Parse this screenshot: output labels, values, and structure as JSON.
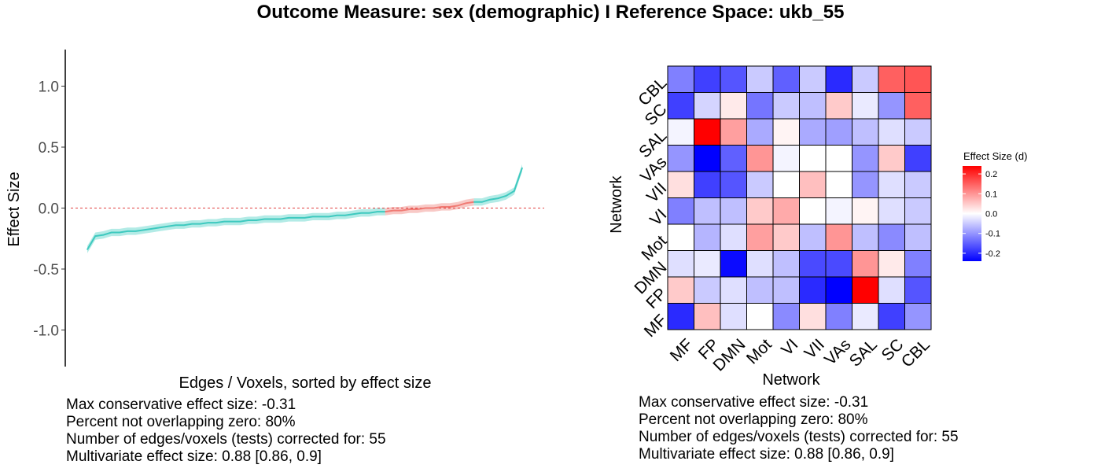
{
  "title": "Outcome Measure: sex (demographic)   I  Reference Space: ukb_55",
  "colors": {
    "teal": "#3ec9bf",
    "teal_band": "#b3ebe6",
    "red": "#f07b74",
    "red_band": "#f8c9c6",
    "zero_line": "#e04040",
    "heat_low": "#0000ff",
    "heat_mid": "#ffffff",
    "heat_high": "#ff0000"
  },
  "chart_data": [
    {
      "type": "line",
      "xlabel": "Edges / Voxels, sorted by effect size",
      "ylabel": "Effect Size",
      "ylim": [
        -1.3,
        1.3
      ],
      "yticks": [
        1.0,
        0.5,
        0.0,
        -0.5,
        -1.0
      ],
      "ytick_labels": [
        "1.0",
        "0.5",
        "0.0",
        "-0.5",
        "-1.0"
      ],
      "grid": false,
      "reference_line": 0,
      "band_halfwidth": 0.03,
      "x": [
        1,
        2,
        3,
        4,
        5,
        6,
        7,
        8,
        9,
        10,
        11,
        12,
        13,
        14,
        15,
        16,
        17,
        18,
        19,
        20,
        21,
        22,
        23,
        24,
        25,
        26,
        27,
        28,
        29,
        30,
        31,
        32,
        33,
        34,
        35,
        36,
        37,
        38,
        39,
        40,
        41,
        42,
        43,
        44,
        45,
        46,
        47,
        48,
        49,
        50,
        51,
        52,
        53,
        54,
        55
      ],
      "y": [
        -0.34,
        -0.23,
        -0.22,
        -0.2,
        -0.2,
        -0.19,
        -0.19,
        -0.18,
        -0.17,
        -0.16,
        -0.15,
        -0.14,
        -0.14,
        -0.13,
        -0.13,
        -0.12,
        -0.12,
        -0.11,
        -0.11,
        -0.11,
        -0.1,
        -0.1,
        -0.09,
        -0.09,
        -0.09,
        -0.08,
        -0.08,
        -0.08,
        -0.07,
        -0.07,
        -0.07,
        -0.06,
        -0.06,
        -0.05,
        -0.04,
        -0.04,
        -0.03,
        -0.03,
        -0.02,
        -0.02,
        -0.01,
        -0.01,
        0.0,
        0.0,
        0.01,
        0.01,
        0.02,
        0.04,
        0.05,
        0.05,
        0.07,
        0.08,
        0.1,
        0.14,
        0.33
      ],
      "overlap_zero": [
        false,
        false,
        false,
        false,
        false,
        false,
        false,
        false,
        false,
        false,
        false,
        false,
        false,
        false,
        false,
        false,
        false,
        false,
        false,
        false,
        false,
        false,
        false,
        false,
        false,
        false,
        false,
        false,
        false,
        false,
        false,
        false,
        false,
        false,
        false,
        false,
        false,
        true,
        true,
        true,
        true,
        true,
        true,
        true,
        true,
        true,
        true,
        true,
        false,
        false,
        false,
        false,
        false,
        false,
        false
      ]
    },
    {
      "type": "heatmap",
      "xlabel": "Network",
      "ylabel": "Network",
      "x_labels": [
        "MF",
        "FP",
        "DMN",
        "Mot",
        "VI",
        "VII",
        "VAs",
        "SAL",
        "SC",
        "CBL"
      ],
      "y_labels": [
        "MF",
        "FP",
        "DMN",
        "Mot",
        "VI",
        "VII",
        "VAs",
        "SAL",
        "SC",
        "CBL"
      ],
      "rows_top_to_bottom": [
        "CBL",
        "SC",
        "SAL",
        "VAs",
        "VII",
        "VI",
        "Mot",
        "DMN",
        "FP",
        "MF"
      ],
      "values": [
        [
          -0.12,
          -0.18,
          -0.16,
          -0.05,
          -0.15,
          -0.05,
          -0.2,
          -0.05,
          0.15,
          0.16
        ],
        [
          -0.18,
          -0.04,
          0.02,
          -0.13,
          -0.05,
          -0.06,
          0.05,
          -0.02,
          -0.1,
          0.15
        ],
        [
          -0.01,
          0.24,
          0.09,
          -0.08,
          0.01,
          -0.08,
          -0.09,
          -0.06,
          -0.03,
          -0.05
        ],
        [
          -0.1,
          -0.26,
          -0.15,
          0.1,
          -0.01,
          0.0,
          0.0,
          -0.1,
          0.05,
          -0.18
        ],
        [
          0.03,
          -0.18,
          -0.16,
          -0.05,
          0.0,
          0.06,
          0.0,
          -0.1,
          -0.03,
          -0.05
        ],
        [
          -0.12,
          -0.06,
          -0.06,
          0.05,
          0.08,
          0.0,
          -0.01,
          0.01,
          -0.03,
          -0.05
        ],
        [
          0.0,
          -0.07,
          -0.03,
          0.09,
          0.05,
          -0.06,
          0.1,
          -0.06,
          -0.11,
          -0.06
        ],
        [
          -0.03,
          -0.02,
          -0.23,
          -0.03,
          -0.06,
          -0.17,
          -0.17,
          0.1,
          0.02,
          -0.12
        ],
        [
          0.05,
          -0.05,
          -0.03,
          -0.06,
          -0.06,
          -0.2,
          -0.26,
          0.24,
          -0.03,
          -0.16
        ],
        [
          -0.2,
          0.06,
          -0.03,
          0.0,
          -0.11,
          0.03,
          -0.12,
          -0.02,
          -0.18,
          -0.1
        ]
      ],
      "legend": {
        "title": "Effect Size (d)",
        "ticks": [
          0.2,
          0.1,
          0.0,
          -0.1,
          -0.2
        ],
        "tick_labels": [
          "0.2",
          "0.1",
          "0.0",
          "-0.1",
          "-0.2"
        ],
        "range": [
          -0.24,
          0.24
        ],
        "placement": "right"
      }
    }
  ],
  "stats_left": {
    "line1": "Max conservative effect size: -0.31",
    "line2": "Percent not overlapping zero: 80%",
    "line3": "Number of edges/voxels (tests) corrected for: 55",
    "line4": "Multivariate effect size: 0.88 [0.86, 0.9]"
  },
  "stats_right": {
    "line1": "Max conservative effect size: -0.31",
    "line2": "Percent not overlapping zero: 80%",
    "line3": "Number of edges/voxels (tests) corrected for: 55",
    "line4": "Multivariate effect size: 0.88 [0.86, 0.9]"
  }
}
